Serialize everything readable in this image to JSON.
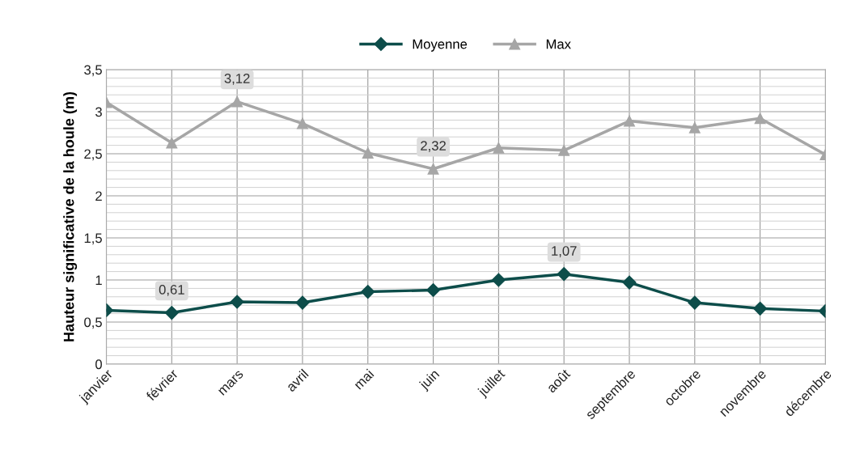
{
  "chart_data": {
    "type": "line",
    "ylabel": "Hauteur significative de la houle (m)",
    "categories": [
      "janvier",
      "février",
      "mars",
      "avril",
      "mai",
      "juin",
      "juillet",
      "août",
      "septembre",
      "octobre",
      "novembre",
      "décembre"
    ],
    "series": [
      {
        "name": "Moyenne",
        "color": "#0d4d4a",
        "marker": "diamond",
        "values": [
          0.64,
          0.61,
          0.74,
          0.73,
          0.86,
          0.88,
          1.0,
          1.07,
          0.97,
          0.73,
          0.66,
          0.63
        ],
        "value_labels": [
          null,
          "0,61",
          null,
          null,
          null,
          null,
          null,
          "1,07",
          null,
          null,
          null,
          null
        ]
      },
      {
        "name": "Max",
        "color": "#a6a6a6",
        "marker": "triangle",
        "values": [
          3.11,
          2.63,
          3.12,
          2.86,
          2.51,
          2.32,
          2.57,
          2.54,
          2.89,
          2.81,
          2.92,
          2.49
        ],
        "value_labels": [
          null,
          null,
          "3,12",
          null,
          null,
          "2,32",
          null,
          null,
          null,
          null,
          null,
          null
        ]
      }
    ],
    "ylim": [
      0,
      3.5
    ],
    "yticks": [
      0,
      {
        "value": 0.5,
        "label": "0,5"
      },
      1,
      {
        "value": 1.5,
        "label": "1,5"
      },
      2,
      {
        "value": 2.5,
        "label": "2,5"
      },
      3,
      {
        "value": 3.5,
        "label": "3,5"
      }
    ],
    "grid": true,
    "legend": "top",
    "line_style": "solid"
  }
}
